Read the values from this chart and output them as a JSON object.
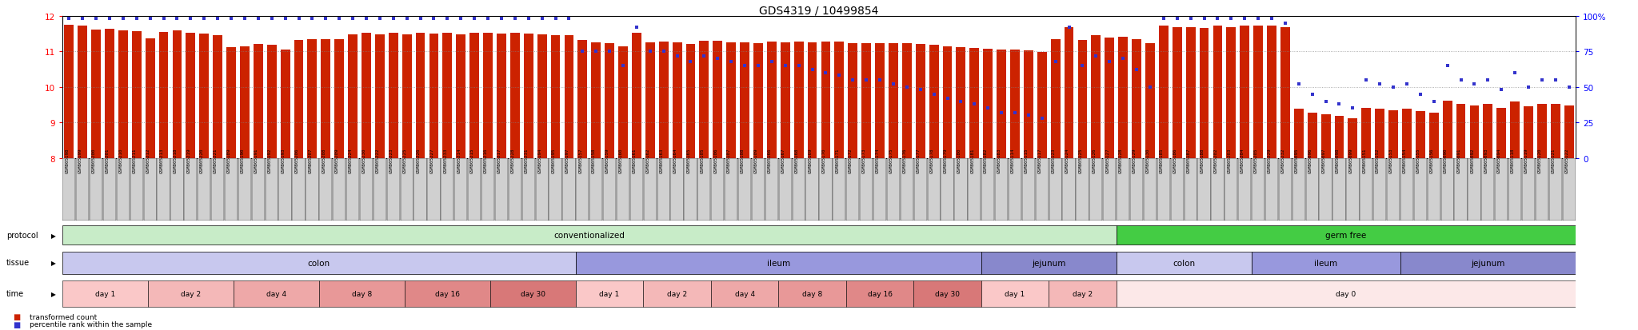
{
  "title": "GDS4319 / 10499854",
  "sample_ids": [
    "GSM805198",
    "GSM805199",
    "GSM805200",
    "GSM805201",
    "GSM805210",
    "GSM805211",
    "GSM805212",
    "GSM805213",
    "GSM805218",
    "GSM805219",
    "GSM805220",
    "GSM805221",
    "GSM805189",
    "GSM805190",
    "GSM805191",
    "GSM805192",
    "GSM805193",
    "GSM805206",
    "GSM805207",
    "GSM805208",
    "GSM805209",
    "GSM805224",
    "GSM805230",
    "GSM805222",
    "GSM805223",
    "GSM805225",
    "GSM805226",
    "GSM805227",
    "GSM805233",
    "GSM805214",
    "GSM805215",
    "GSM805216",
    "GSM805217",
    "GSM805228",
    "GSM805231",
    "GSM805194",
    "GSM805195",
    "GSM805197",
    "GSM805157",
    "GSM805158",
    "GSM805159",
    "GSM805160",
    "GSM805161",
    "GSM805162",
    "GSM805163",
    "GSM805164",
    "GSM805165",
    "GSM805105",
    "GSM805106",
    "GSM805107",
    "GSM805108",
    "GSM805109",
    "GSM805166",
    "GSM805167",
    "GSM805168",
    "GSM805169",
    "GSM805170",
    "GSM805171",
    "GSM805172",
    "GSM805173",
    "GSM805174",
    "GSM805175",
    "GSM805176",
    "GSM805177",
    "GSM805178",
    "GSM805179",
    "GSM805180",
    "GSM805181",
    "GSM805182",
    "GSM805183",
    "GSM805114",
    "GSM805115",
    "GSM805117",
    "GSM805123",
    "GSM805124",
    "GSM805125",
    "GSM805126",
    "GSM805127",
    "GSM805128",
    "GSM805129",
    "GSM805130",
    "GSM805185",
    "GSM805186",
    "GSM805187",
    "GSM805188",
    "GSM805202",
    "GSM805203",
    "GSM805204",
    "GSM805205",
    "GSM805229",
    "GSM805232",
    "GSM805095",
    "GSM805096",
    "GSM805097",
    "GSM805098",
    "GSM805099",
    "GSM805151",
    "GSM805152",
    "GSM805153",
    "GSM805154",
    "GSM805155",
    "GSM805156",
    "GSM805090",
    "GSM805091",
    "GSM805092",
    "GSM805093",
    "GSM805094",
    "GSM805118",
    "GSM805119",
    "GSM805120",
    "GSM805121",
    "GSM805122"
  ],
  "bar_values": [
    11.75,
    11.72,
    11.62,
    11.63,
    11.58,
    11.56,
    11.37,
    11.55,
    11.58,
    11.53,
    11.51,
    11.45,
    11.12,
    11.14,
    11.2,
    11.18,
    11.05,
    11.32,
    11.35,
    11.35,
    11.34,
    11.48,
    11.52,
    11.48,
    11.52,
    11.48,
    11.52,
    11.5,
    11.52,
    11.48,
    11.52,
    11.52,
    11.5,
    11.52,
    11.5,
    11.48,
    11.46,
    11.45,
    11.32,
    11.25,
    11.22,
    11.15,
    11.52,
    11.25,
    11.28,
    11.25,
    11.2,
    11.3,
    11.3,
    11.25,
    11.25,
    11.22,
    11.28,
    11.26,
    11.28,
    11.26,
    11.28,
    11.28,
    11.24,
    11.24,
    11.24,
    11.22,
    11.22,
    11.2,
    11.18,
    11.15,
    11.12,
    11.1,
    11.08,
    11.05,
    11.05,
    11.02,
    10.98,
    11.35,
    11.68,
    11.32,
    11.45,
    11.38,
    11.42,
    11.35,
    11.22,
    11.72,
    11.68,
    11.68,
    11.66,
    11.72,
    11.68,
    11.72,
    11.72,
    11.72,
    11.68,
    9.38,
    9.28,
    9.22,
    9.18,
    9.12,
    9.42,
    9.38,
    9.35,
    9.38,
    9.32,
    9.28,
    9.62,
    9.52,
    9.48,
    9.52,
    9.42,
    9.58,
    9.45,
    9.52,
    9.52,
    9.48
  ],
  "dot_values": [
    98,
    98,
    98,
    98,
    98,
    98,
    98,
    98,
    98,
    98,
    98,
    98,
    98,
    98,
    98,
    98,
    98,
    98,
    98,
    98,
    98,
    98,
    98,
    98,
    98,
    98,
    98,
    98,
    98,
    98,
    98,
    98,
    98,
    98,
    98,
    98,
    98,
    98,
    75,
    75,
    75,
    65,
    92,
    75,
    75,
    72,
    68,
    72,
    70,
    68,
    65,
    65,
    68,
    65,
    65,
    62,
    60,
    58,
    55,
    55,
    55,
    52,
    50,
    48,
    45,
    42,
    40,
    38,
    35,
    32,
    32,
    30,
    28,
    68,
    92,
    65,
    72,
    68,
    70,
    62,
    50,
    98,
    98,
    98,
    98,
    98,
    98,
    98,
    98,
    98,
    95,
    52,
    45,
    40,
    38,
    35,
    55,
    52,
    50,
    52,
    45,
    40,
    65,
    55,
    52,
    55,
    48,
    60,
    50,
    55,
    55,
    50
  ],
  "ylim_left": [
    8,
    12
  ],
  "ylim_right": [
    0,
    100
  ],
  "yticks_left": [
    8,
    9,
    10,
    11,
    12
  ],
  "yticks_right": [
    0,
    25,
    50,
    75,
    100
  ],
  "bar_color": "#cc2200",
  "dot_color": "#3333cc",
  "background_color": "#ffffff",
  "title_fontsize": 10,
  "label_bg_color": "#d0d0d0",
  "conv_color": "#c8ecc8",
  "gf_color": "#44cc44",
  "colon_color": "#c8c8ee",
  "ileum_color": "#9898dd",
  "jejunum_color": "#8888cc",
  "time_colors": {
    "day 0": "#fce8e8",
    "day 1": "#fac8c8",
    "day 2": "#f4b8b8",
    "day 4": "#eea8a8",
    "day 8": "#e89898",
    "day 16": "#e08888",
    "day 30": "#d87878"
  }
}
